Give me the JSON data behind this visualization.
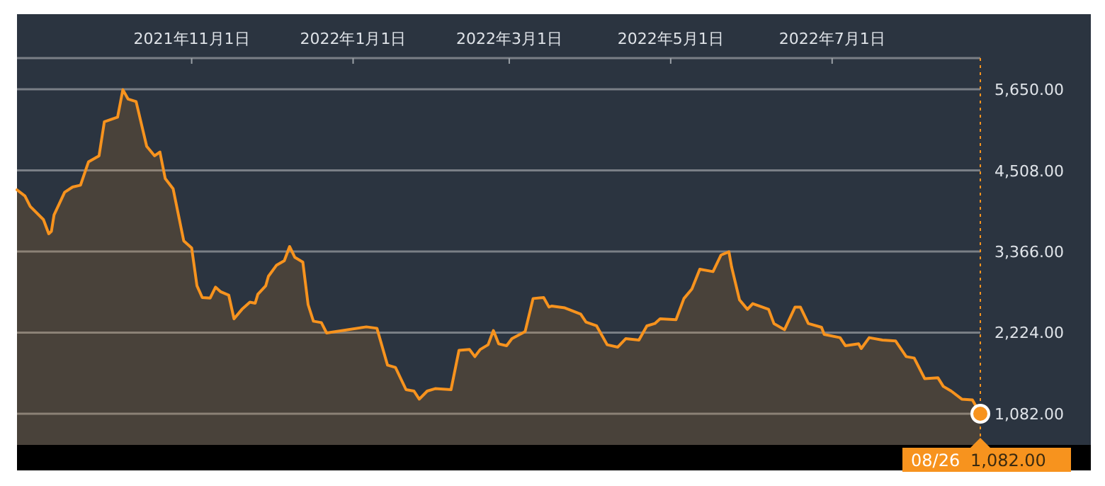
{
  "chart_data": {
    "type": "area",
    "xlim": [
      "2021-08-27",
      "2022-08-26"
    ],
    "ylim": [
      643,
      6089
    ],
    "xticks": [
      {
        "value": "2021-11-01",
        "label": "2021年11月1日"
      },
      {
        "value": "2022-01-01",
        "label": "2022年1月1日"
      },
      {
        "value": "2022-03-01",
        "label": "2022年3月1日"
      },
      {
        "value": "2022-05-01",
        "label": "2022年5月1日"
      },
      {
        "value": "2022-07-01",
        "label": "2022年7月1日"
      }
    ],
    "yticks": [
      {
        "value": 1082,
        "label": "1,082.00"
      },
      {
        "value": 2224,
        "label": "2,224.00"
      },
      {
        "value": 3366,
        "label": "3,366.00"
      },
      {
        "value": 4508,
        "label": "4,508.00"
      },
      {
        "value": 5650,
        "label": "5,650.00"
      }
    ],
    "grid": "y",
    "x": [
      "2021-08-27",
      "2021-08-30",
      "2021-09-01",
      "2021-09-06",
      "2021-09-08",
      "2021-09-09",
      "2021-09-10",
      "2021-09-14",
      "2021-09-17",
      "2021-09-20",
      "2021-09-23",
      "2021-09-27",
      "2021-09-29",
      "2021-10-04",
      "2021-10-06",
      "2021-10-08",
      "2021-10-11",
      "2021-10-15",
      "2021-10-18",
      "2021-10-20",
      "2021-10-22",
      "2021-10-25",
      "2021-10-29",
      "2021-11-01",
      "2021-11-03",
      "2021-11-05",
      "2021-11-08",
      "2021-11-10",
      "2021-11-12",
      "2021-11-15",
      "2021-11-17",
      "2021-11-20",
      "2021-11-23",
      "2021-11-25",
      "2021-11-26",
      "2021-11-29",
      "2021-11-30",
      "2021-12-03",
      "2021-12-06",
      "2021-12-08",
      "2021-12-10",
      "2021-12-13",
      "2021-12-15",
      "2021-12-17",
      "2021-12-20",
      "2021-12-22",
      "2022-01-06",
      "2022-01-10",
      "2022-01-14",
      "2022-01-17",
      "2022-01-21",
      "2022-01-24",
      "2022-01-26",
      "2022-01-29",
      "2022-02-01",
      "2022-02-07",
      "2022-02-10",
      "2022-02-14",
      "2022-02-16",
      "2022-02-18",
      "2022-02-21",
      "2022-02-23",
      "2022-02-25",
      "2022-02-28",
      "2022-03-02",
      "2022-03-07",
      "2022-03-10",
      "2022-03-14",
      "2022-03-16",
      "2022-03-17",
      "2022-03-22",
      "2022-03-28",
      "2022-03-30",
      "2022-04-03",
      "2022-04-07",
      "2022-04-11",
      "2022-04-14",
      "2022-04-19",
      "2022-04-22",
      "2022-04-25",
      "2022-04-27",
      "2022-05-03",
      "2022-05-06",
      "2022-05-09",
      "2022-05-12",
      "2022-05-17",
      "2022-05-20",
      "2022-05-23",
      "2022-05-24",
      "2022-05-27",
      "2022-05-30",
      "2022-06-01",
      "2022-06-07",
      "2022-06-09",
      "2022-06-13",
      "2022-06-17",
      "2022-06-19",
      "2022-06-22",
      "2022-06-27",
      "2022-06-28",
      "2022-07-04",
      "2022-07-06",
      "2022-07-11",
      "2022-07-12",
      "2022-07-15",
      "2022-07-20",
      "2022-07-25",
      "2022-07-29",
      "2022-08-01",
      "2022-08-05",
      "2022-08-10",
      "2022-08-12",
      "2022-08-15",
      "2022-08-19",
      "2022-08-23",
      "2022-08-26"
    ],
    "series": [
      {
        "color": "#f7931e",
        "values": [
          4234,
          4148,
          4001,
          3815,
          3616,
          3650,
          3881,
          4200,
          4274,
          4300,
          4627,
          4713,
          5192,
          5258,
          5644,
          5511,
          5477,
          4847,
          4713,
          4767,
          4394,
          4248,
          3516,
          3416,
          2884,
          2718,
          2711,
          2864,
          2798,
          2752,
          2419,
          2552,
          2652,
          2638,
          2764,
          2884,
          3017,
          3171,
          3237,
          3436,
          3283,
          3217,
          2618,
          2385,
          2365,
          2219,
          2305,
          2285,
          1766,
          1734,
          1421,
          1401,
          1287,
          1401,
          1435,
          1421,
          1974,
          1986,
          1886,
          1986,
          2053,
          2253,
          2066,
          2040,
          2139,
          2239,
          2704,
          2718,
          2584,
          2598,
          2572,
          2484,
          2372,
          2319,
          2053,
          2020,
          2139,
          2119,
          2319,
          2352,
          2419,
          2405,
          2704,
          2838,
          3117,
          3083,
          3316,
          3362,
          3151,
          2685,
          2552,
          2632,
          2552,
          2352,
          2265,
          2584,
          2584,
          2352,
          2299,
          2199,
          2153,
          2040,
          2066,
          2000,
          2153,
          2119,
          2106,
          1886,
          1866,
          1575,
          1587,
          1467,
          1401,
          1287,
          1276,
          1082
        ]
      }
    ],
    "ref_lines": [
      {
        "axis": "x",
        "value": "2022-08-26",
        "color": "#f7931e",
        "line_style": "dotted"
      }
    ],
    "annotations": [
      {
        "text": "08/26",
        "x": "2022-08-26",
        "y": 1082
      },
      {
        "text": "1,082.00",
        "x": "2022-08-26",
        "y": 1082
      }
    ]
  }
}
